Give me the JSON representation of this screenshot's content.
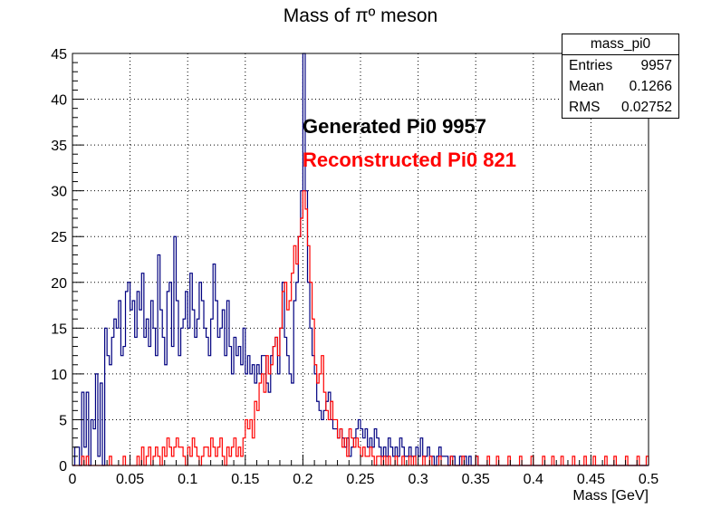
{
  "chart_data": {
    "type": "histogram",
    "title": "Mass of  πº meson",
    "xlabel": "Mass [GeV]",
    "ylabel": "",
    "xlim": [
      0,
      0.5
    ],
    "ylim": [
      0,
      45
    ],
    "x_ticks": [
      "0",
      "0.05",
      "0.1",
      "0.15",
      "0.2",
      "0.25",
      "0.3",
      "0.35",
      "0.4",
      "0.45",
      "0.5"
    ],
    "y_ticks": [
      "0",
      "5",
      "10",
      "15",
      "20",
      "25",
      "30",
      "35",
      "40",
      "45"
    ],
    "grid": true,
    "bin_width": 0.002,
    "annotations": {
      "generated": "Generated Pi0 9957",
      "reconstructed": "Reconstructed Pi0 821"
    },
    "stats": {
      "name": "mass_pi0",
      "entries_label": "Entries",
      "entries": "9957",
      "mean_label": "Mean",
      "mean": "0.1266",
      "rms_label": "RMS",
      "rms": "0.02752"
    },
    "series": [
      {
        "color": "#000080",
        "x_start": 0,
        "values": [
          0,
          2,
          2,
          0,
          8,
          2,
          8,
          0,
          5,
          4,
          10,
          1,
          9,
          0,
          15,
          12,
          11,
          14,
          16,
          15,
          18,
          12,
          13,
          19,
          20,
          17,
          18,
          14,
          19,
          17,
          21,
          14,
          16,
          13,
          18,
          15,
          12,
          23,
          17,
          14,
          11,
          19,
          20,
          13,
          25,
          18,
          12,
          15,
          16,
          19,
          15,
          21,
          17,
          14,
          16,
          20,
          18,
          15,
          14,
          12,
          16,
          22,
          18,
          14,
          15,
          17,
          12,
          18,
          13,
          10,
          14,
          12,
          13,
          11,
          15,
          10,
          12,
          10,
          11,
          9,
          11,
          10,
          12,
          12,
          9,
          8,
          12,
          13,
          14,
          10,
          15,
          20,
          14,
          12,
          10,
          9,
          18,
          20,
          25,
          30,
          45,
          30,
          20,
          15,
          12,
          10,
          7,
          6,
          5,
          6,
          7,
          8,
          5,
          4,
          4,
          3,
          4,
          3,
          2,
          3,
          1,
          2,
          3,
          4,
          5,
          4,
          3,
          4,
          2,
          3,
          2,
          4,
          3,
          2,
          1,
          2,
          1,
          3,
          2,
          1,
          2,
          1,
          3,
          2,
          1,
          1,
          2,
          1,
          1,
          2,
          1,
          3,
          1,
          1,
          2,
          1,
          1,
          0,
          1,
          2,
          1,
          1,
          1,
          0,
          1,
          1,
          0,
          0,
          1,
          0,
          1,
          0,
          1,
          0,
          0,
          1,
          0,
          0,
          0,
          0,
          0,
          0,
          0,
          0,
          0,
          0,
          0,
          0,
          0,
          0,
          0,
          0,
          0,
          0,
          0,
          0,
          0,
          0,
          0,
          0,
          0,
          0,
          0,
          0,
          0,
          0,
          0,
          0,
          0,
          0,
          0,
          0,
          0,
          0,
          0,
          0,
          0,
          0,
          0,
          0,
          0,
          0,
          0,
          0,
          0,
          0,
          0,
          0,
          0,
          0,
          0,
          0,
          0,
          0,
          0,
          0,
          0,
          0,
          0,
          0,
          0,
          0,
          0,
          0,
          0,
          0,
          0,
          0,
          0,
          0,
          0,
          0,
          0
        ]
      },
      {
        "color": "#ff0000",
        "x_start": 0,
        "values": [
          0,
          0,
          0,
          0,
          1,
          0,
          1,
          0,
          0,
          0,
          0,
          0,
          0,
          0,
          0,
          0,
          1,
          0,
          0,
          0,
          0,
          0,
          1,
          0,
          0,
          0,
          0,
          0,
          1,
          0,
          2,
          0,
          1,
          2,
          0,
          1,
          2,
          1,
          0,
          2,
          1,
          3,
          2,
          1,
          2,
          3,
          2,
          2,
          1,
          0,
          2,
          1,
          3,
          2,
          1,
          0,
          1,
          2,
          2,
          1,
          3,
          2,
          1,
          2,
          3,
          1,
          0,
          2,
          1,
          2,
          3,
          1,
          2,
          1,
          3,
          5,
          4,
          5,
          3,
          7,
          6,
          9,
          10,
          8,
          12,
          10,
          11,
          13,
          14,
          12,
          15,
          19,
          20,
          17,
          18,
          21,
          24,
          22,
          25,
          27,
          30,
          28,
          24,
          20,
          16,
          11,
          9,
          10,
          12,
          8,
          6,
          5,
          7,
          5,
          5,
          3,
          4,
          2,
          3,
          1,
          4,
          3,
          2,
          3,
          2,
          1,
          2,
          1,
          1,
          2,
          1,
          0,
          1,
          1,
          0,
          1,
          0,
          1,
          0,
          0,
          1,
          0,
          0,
          1,
          0,
          0,
          1,
          0,
          1,
          0,
          0,
          0,
          1,
          0,
          0,
          1,
          0,
          0,
          0,
          1,
          0,
          0,
          0,
          0,
          1,
          0,
          0,
          0,
          0,
          1,
          0,
          0,
          0,
          0,
          0,
          1,
          0,
          0,
          0,
          0,
          1,
          0,
          0,
          0,
          1,
          0,
          0,
          0,
          0,
          1,
          0,
          0,
          0,
          0,
          1,
          0,
          0,
          0,
          0,
          1,
          0,
          0,
          0,
          0,
          1,
          0,
          0,
          0,
          1,
          0,
          0,
          0,
          1,
          0,
          0,
          0,
          0,
          1,
          0,
          0,
          0,
          0,
          1,
          0,
          0,
          0,
          1,
          0,
          0,
          0,
          0,
          1,
          0,
          0,
          0,
          1,
          0,
          0,
          0,
          0,
          1,
          0,
          0,
          0,
          0,
          1,
          0,
          0,
          0,
          1,
          0,
          0,
          0,
          0,
          1,
          0,
          0,
          0,
          0,
          0,
          1,
          0,
          0,
          0,
          1
        ]
      }
    ]
  }
}
